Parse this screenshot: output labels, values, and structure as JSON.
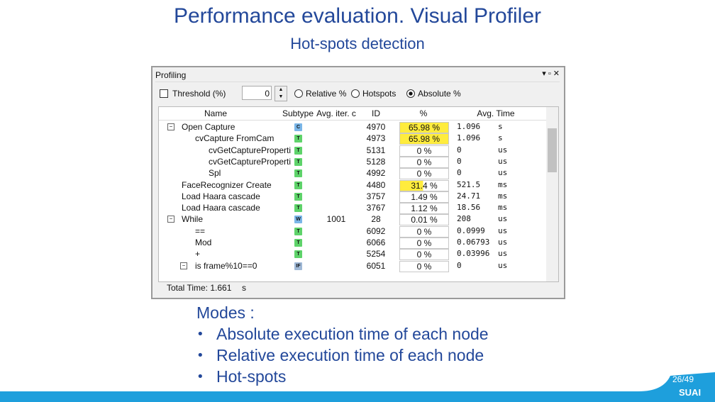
{
  "header": {
    "title": "Performance evaluation. Visual Profiler",
    "subtitle": "Hot-spots detection"
  },
  "window": {
    "title": "Profiling",
    "toolbar": {
      "threshold_label": "Threshold (%)",
      "threshold_value": "0",
      "options": [
        "Relative %",
        "Hotspots",
        "Absolute %"
      ]
    },
    "table": {
      "columns": [
        "Name",
        "Subtype",
        "Avg. iter. c",
        "ID",
        "%",
        "Avg. Time"
      ],
      "rows": [
        [
          "Open Capture",
          "C",
          "",
          "4970",
          "65.98 %",
          "1.096",
          "s"
        ],
        [
          "cvCapture FromCam",
          "T",
          "",
          "4973",
          "65.98 %",
          "1.096",
          "s"
        ],
        [
          "cvGetCaptureProperti",
          "T",
          "",
          "5131",
          "0 %",
          "0",
          "us"
        ],
        [
          "cvGetCaptureProperti",
          "T",
          "",
          "5128",
          "0 %",
          "0",
          "us"
        ],
        [
          "Spl",
          "T",
          "",
          "4992",
          "0 %",
          "0",
          "us"
        ],
        [
          "FaceRecognizer Create",
          "T",
          "",
          "4480",
          "31.4 %",
          "521.5",
          "ms"
        ],
        [
          "Load Haara cascade",
          "T",
          "",
          "3757",
          "1.49 %",
          "24.71",
          "ms"
        ],
        [
          "Load Haara cascade",
          "T",
          "",
          "3767",
          "1.12 %",
          "18.56",
          "ms"
        ],
        [
          "While",
          "W",
          "1001",
          "28",
          "0.01 %",
          "208",
          "us"
        ],
        [
          "==",
          "T",
          "",
          "6092",
          "0 %",
          "0.0999",
          "us"
        ],
        [
          "Mod",
          "T",
          "",
          "6066",
          "0 %",
          "0.06793",
          "us"
        ],
        [
          "+",
          "T",
          "",
          "5254",
          "0 %",
          "0.03996",
          "us"
        ],
        [
          "is frame%10==0",
          "IF",
          "",
          "6051",
          "0 %",
          "0",
          "us"
        ]
      ]
    },
    "footer": {
      "label": "Total Time: 1.661",
      "unit": "s"
    }
  },
  "body": {
    "heading": "Modes :",
    "bullets": [
      "Absolute execution time of each node",
      "Relative execution time of each node",
      "Hot-spots"
    ]
  },
  "footer": {
    "page": "26/49",
    "logo": "SUAI"
  }
}
